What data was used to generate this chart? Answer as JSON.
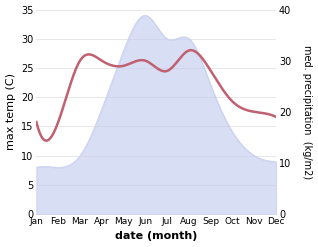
{
  "months": [
    "Jan",
    "Feb",
    "Mar",
    "Apr",
    "May",
    "Jun",
    "Jul",
    "Aug",
    "Sep",
    "Oct",
    "Nov",
    "Dec"
  ],
  "temperature": [
    8,
    8,
    10,
    18,
    28,
    34,
    30,
    30,
    22,
    14,
    10,
    9
  ],
  "precipitation": [
    18,
    18,
    30,
    30,
    29,
    30,
    28,
    32,
    28,
    22,
    20,
    19
  ],
  "temp_fill_color": "#c8d0f0",
  "temp_fill_alpha": 0.7,
  "precip_line_color": "#c06070",
  "ylabel_left": "max temp (C)",
  "ylabel_right": "med. precipitation  (kg/m2)",
  "xlabel": "date (month)",
  "ylim_left": [
    0,
    35
  ],
  "ylim_right": [
    0,
    40
  ],
  "yticks_left": [
    0,
    5,
    10,
    15,
    20,
    25,
    30,
    35
  ],
  "yticks_right": [
    0,
    10,
    20,
    30,
    40
  ],
  "background_color": "#ffffff",
  "grid_color": "#dddddd"
}
